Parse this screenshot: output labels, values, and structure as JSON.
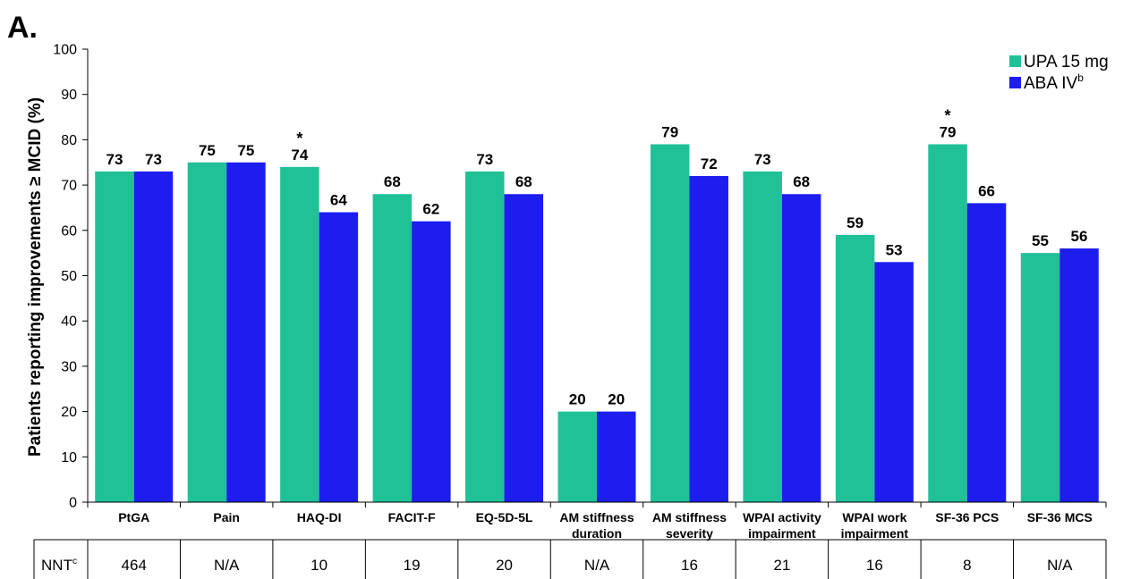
{
  "panel_label": "A.",
  "chart_data": {
    "type": "bar",
    "ylabel": "Patients reporting improvements ≥ MCID (%)",
    "ylim": [
      0,
      100
    ],
    "yticks": [
      0,
      10,
      20,
      30,
      40,
      50,
      60,
      70,
      80,
      90,
      100
    ],
    "legend_position": "top-right",
    "categories": [
      [
        "PtGA"
      ],
      [
        "Pain"
      ],
      [
        "HAQ-DI"
      ],
      [
        "FACIT-F"
      ],
      [
        "EQ-5D-5L"
      ],
      [
        "AM stiffness",
        "duration"
      ],
      [
        "AM stiffness",
        "severity"
      ],
      [
        "WPAI activity",
        "impairment"
      ],
      [
        "WPAI work",
        "impairment"
      ],
      [
        "SF-36 PCS"
      ],
      [
        "SF-36 MCS"
      ]
    ],
    "series": [
      {
        "name": "UPA 15 mg",
        "sup": "",
        "color": "#21c197",
        "values": [
          73,
          75,
          74,
          68,
          73,
          20,
          79,
          73,
          59,
          79,
          55
        ]
      },
      {
        "name": "ABA IV",
        "sup": "b",
        "color": "#1d1df0",
        "values": [
          73,
          75,
          64,
          62,
          68,
          20,
          72,
          68,
          53,
          66,
          56
        ]
      }
    ],
    "significance_marker": "*",
    "significant_categories": [
      "HAQ-DI",
      "SF-36 PCS"
    ]
  },
  "nnt_table": {
    "label": "NNT",
    "label_sup": "c",
    "values": [
      "464",
      "N/A",
      "10",
      "19",
      "20",
      "N/A",
      "16",
      "21",
      "16",
      "8",
      "N/A"
    ]
  }
}
